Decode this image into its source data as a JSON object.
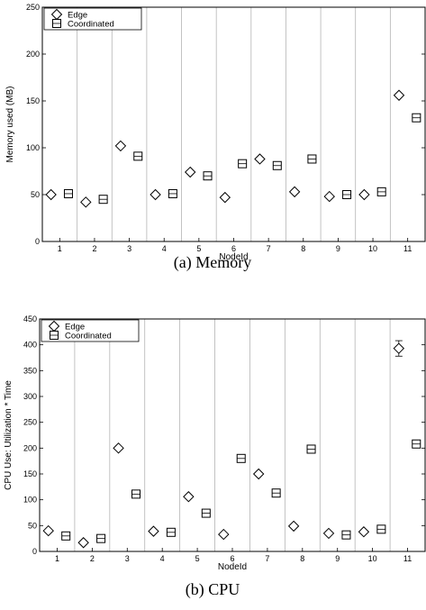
{
  "chart_data": [
    {
      "type": "scatter",
      "caption": "(a) Memory",
      "xlabel": "NodeId",
      "ylabel": "Memory used (MB)",
      "categories": [
        "1",
        "2",
        "3",
        "4",
        "5",
        "6",
        "7",
        "8",
        "9",
        "10",
        "11"
      ],
      "ylim": [
        0,
        250
      ],
      "yticks": [
        0,
        50,
        100,
        150,
        200,
        250
      ],
      "grid": "vertical",
      "legend": "top-left",
      "series": [
        {
          "name": "Edge",
          "marker": "diamond",
          "values": [
            50,
            42,
            102,
            50,
            74,
            47,
            88,
            53,
            48,
            50,
            156
          ]
        },
        {
          "name": "Coordinated",
          "marker": "square",
          "values": [
            51,
            45,
            91,
            51,
            70,
            83,
            81,
            88,
            50,
            53,
            132
          ]
        }
      ]
    },
    {
      "type": "scatter",
      "caption": "(b) CPU",
      "xlabel": "NodeId",
      "ylabel": "CPU Use: Utilization * Time",
      "categories": [
        "1",
        "2",
        "3",
        "4",
        "5",
        "6",
        "7",
        "8",
        "9",
        "10",
        "11"
      ],
      "ylim": [
        0,
        450
      ],
      "yticks": [
        0,
        50,
        100,
        150,
        200,
        250,
        300,
        350,
        400,
        450
      ],
      "grid": "vertical",
      "legend": "top-left",
      "series": [
        {
          "name": "Edge",
          "marker": "diamond",
          "values": [
            40,
            17,
            200,
            39,
            106,
            33,
            150,
            49,
            35,
            38,
            393
          ],
          "errors": [
            0,
            0,
            0,
            0,
            0,
            0,
            0,
            0,
            0,
            0,
            15
          ]
        },
        {
          "name": "Coordinated",
          "marker": "square",
          "values": [
            30,
            25,
            111,
            37,
            74,
            180,
            113,
            198,
            32,
            43,
            208
          ]
        }
      ]
    }
  ]
}
